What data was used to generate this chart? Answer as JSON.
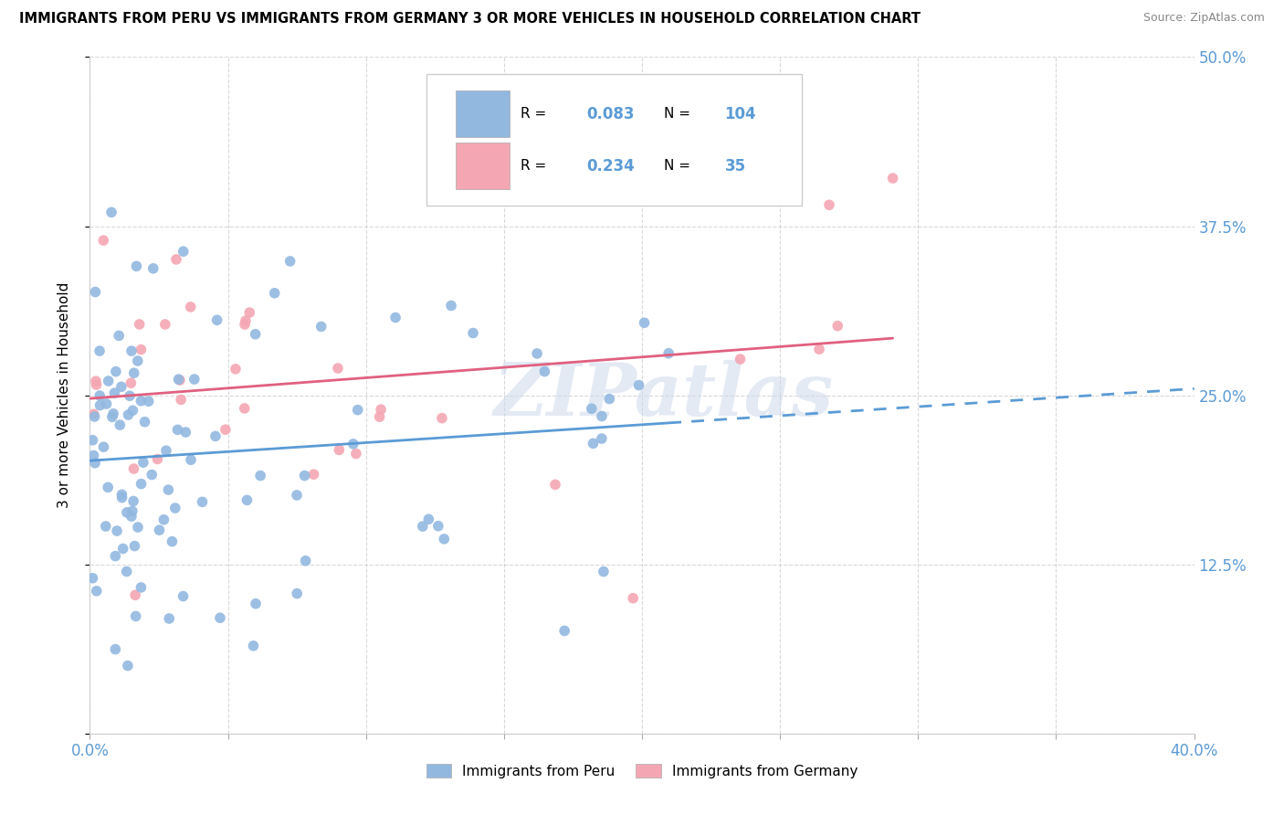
{
  "title": "IMMIGRANTS FROM PERU VS IMMIGRANTS FROM GERMANY 3 OR MORE VEHICLES IN HOUSEHOLD CORRELATION CHART",
  "source": "Source: ZipAtlas.com",
  "ylabel": "3 or more Vehicles in Household",
  "xlim": [
    0.0,
    0.4
  ],
  "ylim": [
    0.0,
    0.5
  ],
  "peru_R": 0.083,
  "peru_N": 104,
  "germany_R": 0.234,
  "germany_N": 35,
  "peru_color": "#92b8e0",
  "germany_color": "#f4a7b3",
  "peru_line_color": "#5b9bd5",
  "germany_line_color": "#e06080",
  "watermark": "ZIPatlas",
  "tick_color": "#5b9bd5",
  "grid_color": "#d0d0d0"
}
